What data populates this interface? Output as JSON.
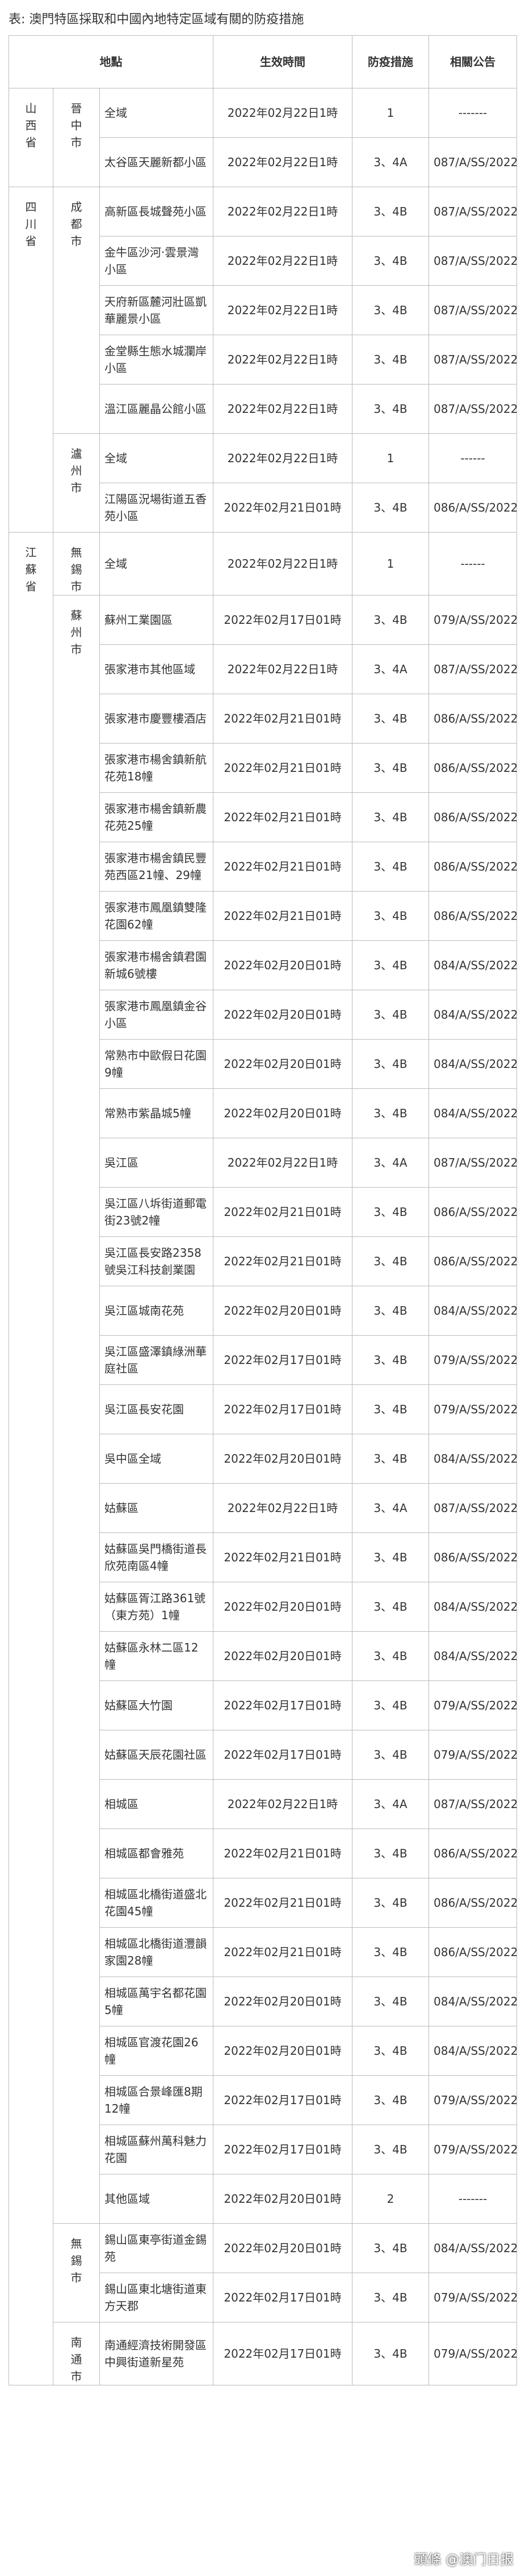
{
  "table": {
    "title": "表: 澳門特區採取和中國內地特定區域有關的防疫措施",
    "header": [
      "地點",
      "生效時間",
      "防疫措施",
      "相關公告"
    ],
    "provinces": [
      {
        "name": "山西省",
        "cities": [
          {
            "name": "晉中市",
            "rows": [
              [
                "全域",
                "2022年02月22日1時",
                "1",
                "-------"
              ],
              [
                "太谷區天麗新都小區",
                "2022年02月22日1時",
                "3、4A",
                "087/A/SS/2022"
              ]
            ]
          }
        ]
      },
      {
        "name": "四川省",
        "cities": [
          {
            "name": "成都市",
            "rows": [
              [
                "高新區長城聲苑小區",
                "2022年02月22日1時",
                "3、4B",
                "087/A/SS/2022"
              ],
              [
                "金牛區沙河·雲景灣小區",
                "2022年02月22日1時",
                "3、4B",
                "087/A/SS/2022"
              ],
              [
                "天府新區麓河壯區凱華麗景小區",
                "2022年02月22日1時",
                "3、4B",
                "087/A/SS/2022"
              ],
              [
                "金堂縣生態水城瀾岸小區",
                "2022年02月22日1時",
                "3、4B",
                "087/A/SS/2022"
              ],
              [
                "溫江區麗晶公館小區",
                "2022年02月22日1時",
                "3、4B",
                "087/A/SS/2022"
              ]
            ]
          },
          {
            "name": "瀘州市",
            "rows": [
              [
                "全域",
                "2022年02月22日1時",
                "1",
                "------"
              ],
              [
                "江陽區況場街道五香苑小區",
                "2022年02月21日01時",
                "3、4B",
                "086/A/SS/2022"
              ]
            ]
          }
        ]
      },
      {
        "name": "江蘇省",
        "cities": [
          {
            "name": "無錫市",
            "rows": [
              [
                "全域",
                "2022年02月22日1時",
                "1",
                "------"
              ]
            ]
          },
          {
            "name": "蘇州市",
            "rows": [
              [
                "蘇州工業園區",
                "2022年02月17日01時",
                "3、4B",
                "079/A/SS/2022"
              ],
              [
                "張家港市其他區域",
                "2022年02月22日1時",
                "3、4A",
                "087/A/SS/2022"
              ],
              [
                "張家港市慶豐樓酒店",
                "2022年02月21日01時",
                "3、4B",
                "086/A/SS/2022"
              ],
              [
                "張家港市楊舍鎮新航花苑18幢",
                "2022年02月21日01時",
                "3、4B",
                "086/A/SS/2022"
              ],
              [
                "張家港市楊舍鎮新農花苑25幢",
                "2022年02月21日01時",
                "3、4B",
                "086/A/SS/2022"
              ],
              [
                "張家港市楊舍鎮民豐苑西區21幢、29幢",
                "2022年02月21日01時",
                "3、4B",
                "086/A/SS/2022"
              ],
              [
                "張家港市鳳凰鎮雙隆花園62幢",
                "2022年02月21日01時",
                "3、4B",
                "086/A/SS/2022"
              ],
              [
                "張家港市楊舍鎮君園新城6號樓",
                "2022年02月20日01時",
                "3、4B",
                "084/A/SS/2022"
              ],
              [
                "張家港市鳳凰鎮金谷小區",
                "2022年02月20日01時",
                "3、4B",
                "084/A/SS/2022"
              ],
              [
                "常熟市中歐假日花園9幢",
                "2022年02月20日01時",
                "3、4B",
                "084/A/SS/2022"
              ],
              [
                "常熟市紫晶城5幢",
                "2022年02月20日01時",
                "3、4B",
                "084/A/SS/2022"
              ],
              [
                "吳江區",
                "2022年02月22日1時",
                "3、4A",
                "087/A/SS/2022"
              ],
              [
                "吳江區八坼街道郵電街23號2幢",
                "2022年02月21日01時",
                "3、4B",
                "086/A/SS/2022"
              ],
              [
                "吳江區長安路2358號吳江科技創業園",
                "2022年02月21日01時",
                "3、4B",
                "086/A/SS/2022"
              ],
              [
                "吳江區城南花苑",
                "2022年02月20日01時",
                "3、4B",
                "084/A/SS/2022"
              ],
              [
                "吳江區盛澤鎮綠洲華庭社區",
                "2022年02月17日01時",
                "3、4B",
                "079/A/SS/2022"
              ],
              [
                "吳江區長安花園",
                "2022年02月17日01時",
                "3、4B",
                "079/A/SS/2022"
              ],
              [
                "吳中區全域",
                "2022年02月20日01時",
                "3、4B",
                "084/A/SS/2022"
              ],
              [
                "姑蘇區",
                "2022年02月22日1時",
                "3、4A",
                "087/A/SS/2022"
              ],
              [
                "姑蘇區吳門橋街道長欣苑南區4幢",
                "2022年02月21日01時",
                "3、4B",
                "086/A/SS/2022"
              ],
              [
                "姑蘇區胥江路361號（東方苑）1幢",
                "2022年02月20日01時",
                "3、4B",
                "084/A/SS/2022"
              ],
              [
                "姑蘇區永林二區12幢",
                "2022年02月20日01時",
                "3、4B",
                "084/A/SS/2022"
              ],
              [
                "姑蘇區大竹園",
                "2022年02月17日01時",
                "3、4B",
                "079/A/SS/2022"
              ],
              [
                "姑蘇區天辰花園社區",
                "2022年02月17日01時",
                "3、4B",
                "079/A/SS/2022"
              ],
              [
                "相城區",
                "2022年02月22日1時",
                "3、4A",
                "087/A/SS/2022"
              ],
              [
                "相城區都會雅苑",
                "2022年02月21日01時",
                "3、4B",
                "086/A/SS/2022"
              ],
              [
                "相城區北橋街道盛北花園45幢",
                "2022年02月21日01時",
                "3、4B",
                "086/A/SS/2022"
              ],
              [
                "相城區北橋街道灃韻家園28幢",
                "2022年02月21日01時",
                "3、4B",
                "086/A/SS/2022"
              ],
              [
                "相城區萬宇名都花園5幢",
                "2022年02月20日01時",
                "3、4B",
                "084/A/SS/2022"
              ],
              [
                "相城區官渡花園26幢",
                "2022年02月20日01時",
                "3、4B",
                "084/A/SS/2022"
              ],
              [
                "相城區合景峰匯8期12幢",
                "2022年02月17日01時",
                "3、4B",
                "079/A/SS/2022"
              ],
              [
                "相城區蘇州萬科魅力花園",
                "2022年02月17日01時",
                "3、4B",
                "079/A/SS/2022"
              ],
              [
                "其他區域",
                "2022年02月20日01時",
                "2",
                "-------"
              ]
            ]
          },
          {
            "name": "無錫市",
            "rows": [
              [
                "錫山區東亭街道金錫苑",
                "2022年02月20日01時",
                "3、4B",
                "084/A/SS/2022"
              ],
              [
                "錫山區東北塘街道東方天郡",
                "2022年02月17日01時",
                "3、4B",
                "079/A/SS/2022"
              ]
            ]
          },
          {
            "name": "南通市",
            "rows": [
              [
                "南通經濟技術開發區中興街道新星苑",
                "2022年02月17日01時",
                "3、4B",
                "079/A/SS/2022"
              ]
            ]
          }
        ]
      }
    ],
    "watermark": "頭條 @澳门日报"
  }
}
